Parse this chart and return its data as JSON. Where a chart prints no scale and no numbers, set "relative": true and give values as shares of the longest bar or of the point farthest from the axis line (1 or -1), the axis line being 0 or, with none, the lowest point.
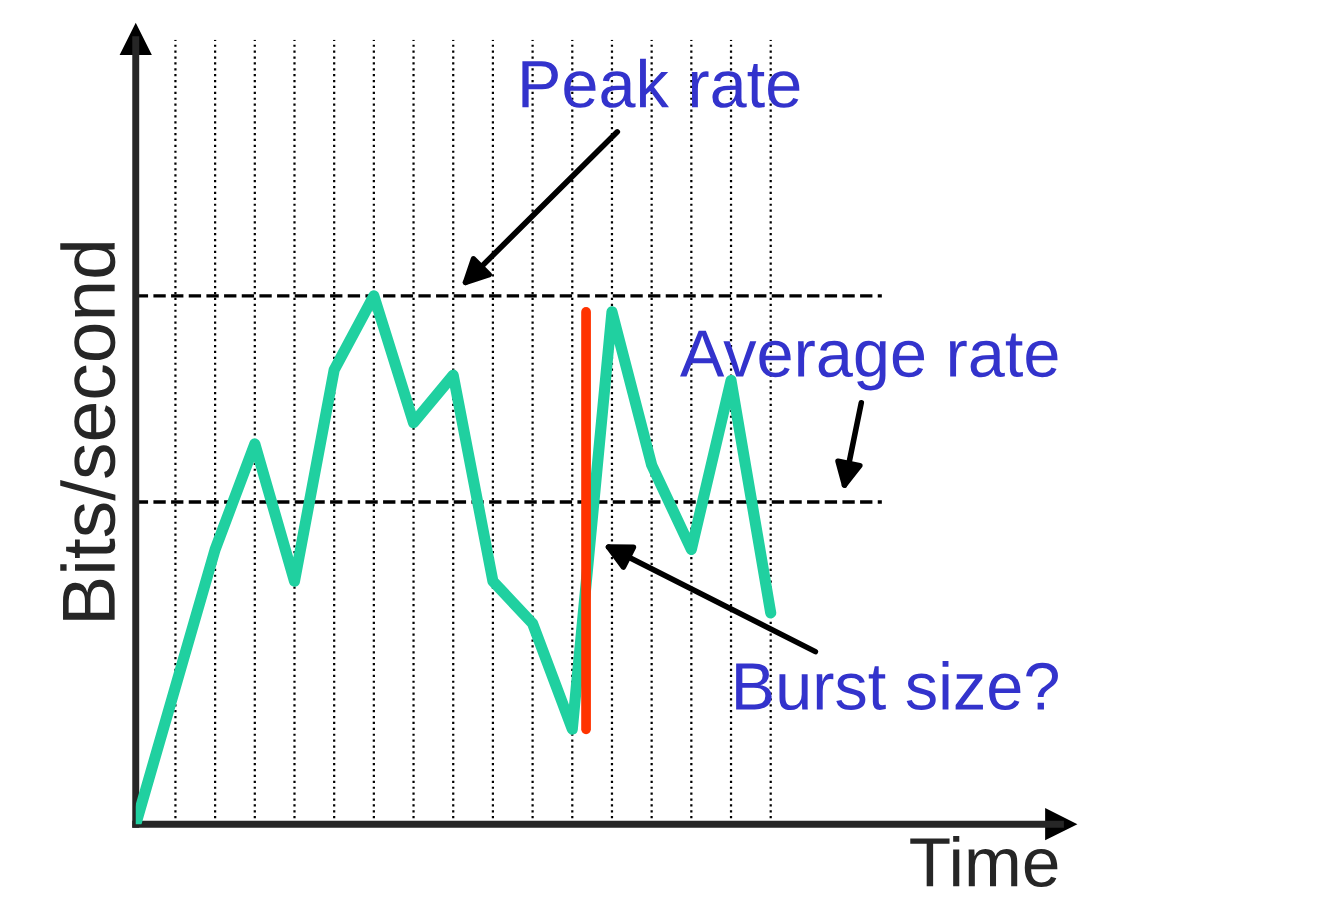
{
  "chart_data": {
    "type": "line",
    "relative": true,
    "xlabel": "Time",
    "ylabel": "Bits/second",
    "categories": [
      null,
      null,
      null,
      null,
      null,
      null,
      null,
      null,
      null,
      null,
      null,
      null,
      null,
      null,
      null,
      null,
      null
    ],
    "series": [
      {
        "color": "#20d0a0",
        "values": [
          0,
          0.26,
          0.52,
          0.72,
          0.46,
          0.86,
          1.0,
          0.76,
          0.85,
          0.46,
          0.38,
          0.18,
          0.97,
          0.68,
          0.52,
          0.84,
          0.4
        ]
      }
    ],
    "ref_lines": [
      {
        "axis": "y",
        "value": 1.0,
        "label": "Peak rate",
        "line_style": "dashed",
        "color": "#000000"
      },
      {
        "axis": "y",
        "value": 0.61,
        "label": "Average rate",
        "line_style": "dashed",
        "color": "#000000"
      }
    ],
    "annotations": [
      "Burst size?"
    ],
    "grid": "x",
    "marker": "none",
    "line_style": "solid"
  }
}
